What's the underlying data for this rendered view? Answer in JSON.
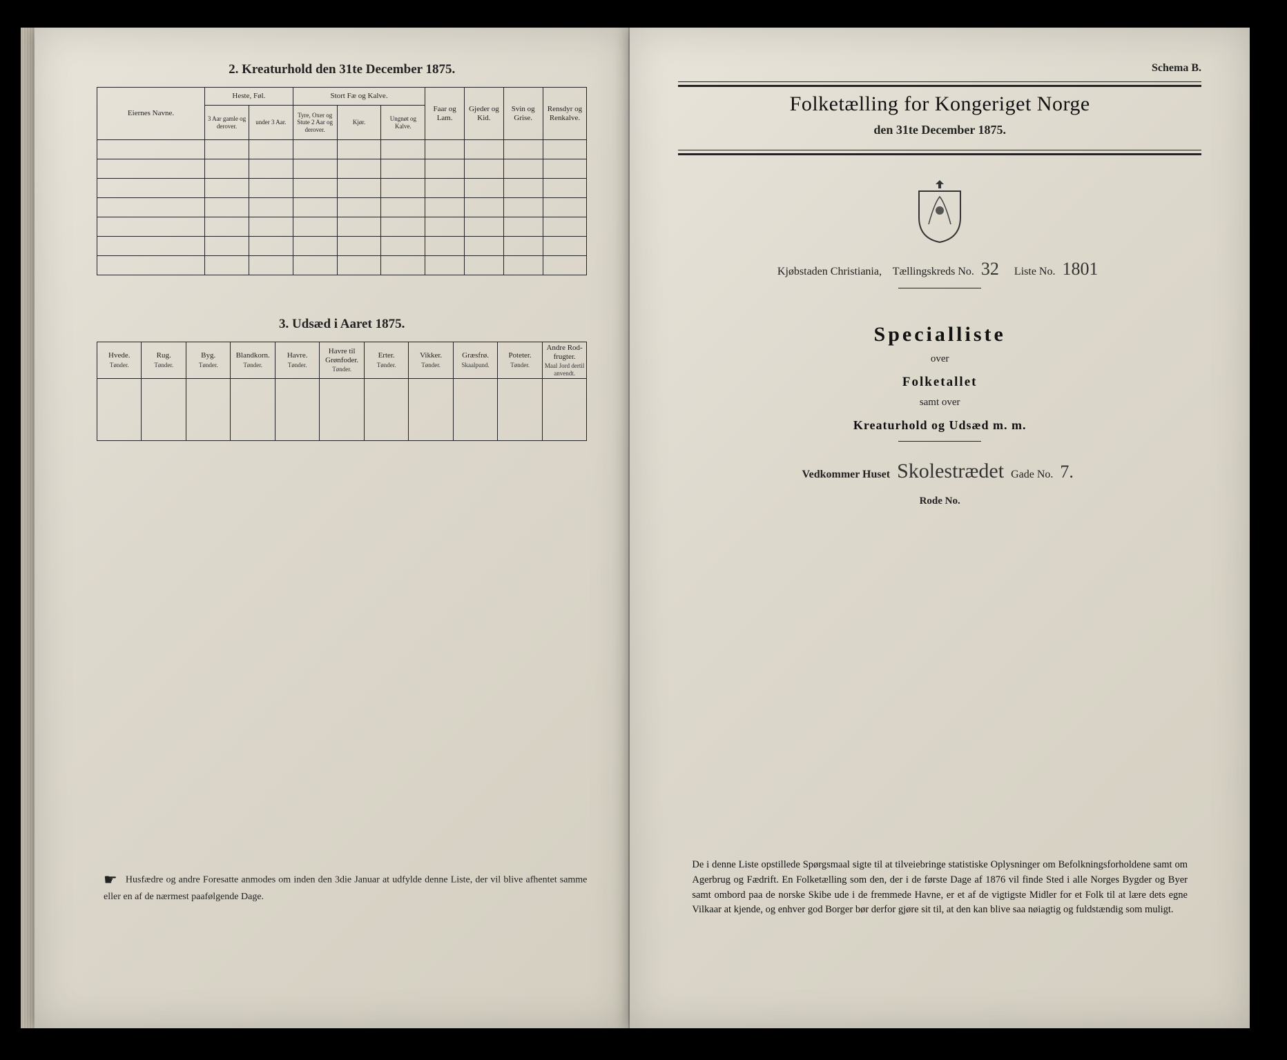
{
  "left": {
    "section2_title": "2. Kreaturhold den 31te December 1875.",
    "section3_title": "3. Udsæd i Aaret 1875.",
    "table2": {
      "col_owner": "Eiernes Navne.",
      "grp_horses": "Heste, Føl.",
      "grp_cattle": "Stort Fæ og Kalve.",
      "col_sheep": "Faar og Lam.",
      "col_goats": "Gjeder og Kid.",
      "col_pigs": "Svin og Grise.",
      "col_reindeer": "Rensdyr og Renkalve.",
      "sub_h1": "3 Aar gamle og derover.",
      "sub_h2": "under 3 Aar.",
      "sub_c1": "Tyre, Oxer og Stute 2 Aar og derover.",
      "sub_c2": "Kjør.",
      "sub_c3": "Ungnøt og Kalve."
    },
    "table3": {
      "cols": [
        {
          "h": "Hvede.",
          "s": "Tønder."
        },
        {
          "h": "Rug.",
          "s": "Tønder."
        },
        {
          "h": "Byg.",
          "s": "Tønder."
        },
        {
          "h": "Blandkorn.",
          "s": "Tønder."
        },
        {
          "h": "Havre.",
          "s": "Tønder."
        },
        {
          "h": "Havre til Grønfoder.",
          "s": "Tønder."
        },
        {
          "h": "Erter.",
          "s": "Tønder."
        },
        {
          "h": "Vikker.",
          "s": "Tønder."
        },
        {
          "h": "Græsfrø.",
          "s": "Skaalpund."
        },
        {
          "h": "Poteter.",
          "s": "Tønder."
        },
        {
          "h": "Andre Rod-frugter.",
          "s": "Maal Jord dertil anvendt."
        }
      ]
    },
    "footnote": "Husfædre og andre Foresatte anmodes om inden den 3die Januar at udfylde denne Liste, der vil blive afhentet samme eller en af de nærmest paafølgende Dage."
  },
  "right": {
    "schema": "Schema B.",
    "title": "Folketælling for Kongeriget Norge",
    "subtitle": "den 31te December 1875.",
    "city_label": "Kjøbstaden Christiania,",
    "kreds_label": "Tællingskreds No.",
    "kreds_value": "32",
    "liste_label": "Liste No.",
    "liste_value": "1801",
    "special": "Specialliste",
    "over1": "over",
    "folketallet": "Folketallet",
    "samt": "samt over",
    "kreatur": "Kreaturhold og Udsæd m. m.",
    "vedkommer": "Vedkommer Huset",
    "street_value": "Skolestrædet",
    "gade_label": "Gade No.",
    "gade_value": "7.",
    "rode": "Rode No.",
    "bottom": "De i denne Liste opstillede Spørgsmaal sigte til at tilveiebringe statistiske Oplysninger om Befolkningsforholdene samt om Agerbrug og Fædrift. En Folketælling som den, der i de første Dage af 1876 vil finde Sted i alle Norges Bygder og Byer samt ombord paa de norske Skibe ude i de fremmede Havne, er et af de vigtigste Midler for et Folk til at lære dets egne Vilkaar at kjende, og enhver god Borger bør derfor gjøre sit til, at den kan blive saa nøiagtig og fuldstændig som muligt."
  }
}
